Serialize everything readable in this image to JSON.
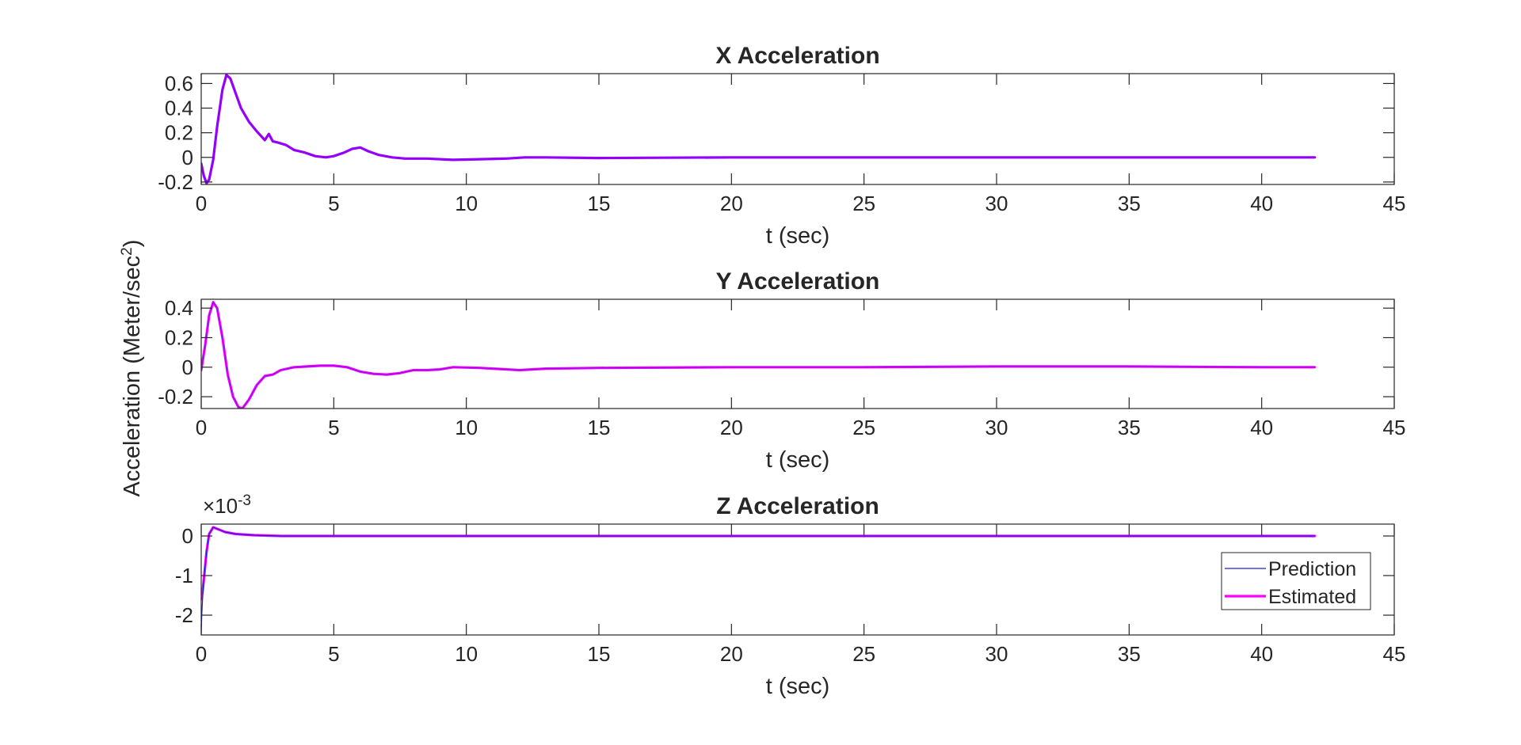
{
  "figure": {
    "ylabel_main": "Acceleration (Meter/sec",
    "ylabel_exp": "2",
    "ylabel_close": ")"
  },
  "colors": {
    "prediction": "#1f1fd6",
    "estimated": "#ff00ff",
    "overlap": "#9400ff",
    "axes": "#262626",
    "grid": "#262626"
  },
  "legend": {
    "placement": "bottom-right of Z Acceleration panel",
    "entries": [
      "Prediction",
      "Estimated"
    ]
  },
  "chart_data": [
    {
      "type": "line",
      "title": "X Acceleration",
      "xlabel": "t (sec)",
      "ylabel": "",
      "xlim": [
        0,
        45
      ],
      "ylim": [
        -0.22,
        0.68
      ],
      "xticks": [
        0,
        5,
        10,
        15,
        20,
        25,
        30,
        35,
        40,
        45
      ],
      "xtick_labels": [
        "0",
        "5",
        "10",
        "15",
        "20",
        "25",
        "30",
        "35",
        "40",
        "45"
      ],
      "yticks": [
        -0.2,
        0,
        0.2,
        0.4,
        0.6
      ],
      "ytick_labels": [
        "-0.2",
        "0",
        "0.2",
        "0.4",
        "0.6"
      ],
      "grid": false,
      "series": [
        {
          "name": "Prediction",
          "x": [
            0,
            0.1,
            0.2,
            0.3,
            0.45,
            0.6,
            0.8,
            0.95,
            1.1,
            1.3,
            1.5,
            1.8,
            2.1,
            2.4,
            2.55,
            2.7,
            2.9,
            3.2,
            3.5,
            3.9,
            4.3,
            4.7,
            5.0,
            5.4,
            5.7,
            6.0,
            6.3,
            6.7,
            7.2,
            7.7,
            8.5,
            9.5,
            10.5,
            11.5,
            12.2,
            13,
            15,
            20,
            25,
            30,
            35,
            40,
            42
          ],
          "y": [
            -0.05,
            -0.15,
            -0.21,
            -0.18,
            -0.02,
            0.25,
            0.55,
            0.67,
            0.64,
            0.52,
            0.4,
            0.29,
            0.21,
            0.14,
            0.19,
            0.13,
            0.12,
            0.1,
            0.06,
            0.04,
            0.01,
            0.0,
            0.01,
            0.04,
            0.07,
            0.08,
            0.05,
            0.02,
            0.0,
            -0.01,
            -0.01,
            -0.02,
            -0.015,
            -0.01,
            0.0,
            0.0,
            -0.005,
            0.0,
            0.0,
            0.0,
            0.0,
            0.0,
            0.0
          ]
        },
        {
          "name": "Estimated",
          "x": [
            0,
            0.1,
            0.2,
            0.3,
            0.45,
            0.6,
            0.8,
            0.95,
            1.1,
            1.3,
            1.5,
            1.8,
            2.1,
            2.4,
            2.55,
            2.7,
            2.9,
            3.2,
            3.5,
            3.9,
            4.3,
            4.7,
            5.0,
            5.4,
            5.7,
            6.0,
            6.3,
            6.7,
            7.2,
            7.7,
            8.5,
            9.5,
            10.5,
            11.5,
            12.2,
            13,
            15,
            20,
            25,
            30,
            35,
            40,
            42
          ],
          "y": [
            -0.05,
            -0.15,
            -0.21,
            -0.18,
            -0.02,
            0.25,
            0.55,
            0.67,
            0.64,
            0.52,
            0.4,
            0.29,
            0.21,
            0.14,
            0.19,
            0.13,
            0.12,
            0.1,
            0.06,
            0.04,
            0.01,
            0.0,
            0.01,
            0.04,
            0.07,
            0.08,
            0.05,
            0.02,
            0.0,
            -0.01,
            -0.01,
            -0.02,
            -0.015,
            -0.01,
            0.0,
            0.0,
            -0.005,
            0.0,
            0.0,
            0.0,
            0.0,
            0.0,
            0.0
          ]
        }
      ]
    },
    {
      "type": "line",
      "title": "Y Acceleration",
      "xlabel": "t (sec)",
      "ylabel": "",
      "xlim": [
        0,
        45
      ],
      "ylim": [
        -0.28,
        0.46
      ],
      "xticks": [
        0,
        5,
        10,
        15,
        20,
        25,
        30,
        35,
        40,
        45
      ],
      "xtick_labels": [
        "0",
        "5",
        "10",
        "15",
        "20",
        "25",
        "30",
        "35",
        "40",
        "45"
      ],
      "yticks": [
        -0.2,
        0,
        0.2,
        0.4
      ],
      "ytick_labels": [
        "-0.2",
        "0",
        "0.2",
        "0.4"
      ],
      "grid": false,
      "series": [
        {
          "name": "Prediction",
          "x": [
            0,
            0.15,
            0.3,
            0.45,
            0.6,
            0.8,
            1.0,
            1.2,
            1.4,
            1.55,
            1.8,
            2.1,
            2.4,
            2.7,
            3.0,
            3.5,
            4.0,
            4.5,
            5.0,
            5.5,
            6.0,
            6.5,
            7.0,
            7.5,
            8.0,
            8.5,
            9.0,
            9.5,
            10.5,
            11.0,
            12.0,
            13.0,
            15,
            20,
            25,
            30,
            35,
            40,
            42
          ],
          "y": [
            -0.02,
            0.15,
            0.35,
            0.44,
            0.4,
            0.2,
            -0.05,
            -0.2,
            -0.27,
            -0.28,
            -0.22,
            -0.12,
            -0.06,
            -0.05,
            -0.02,
            0.0,
            0.005,
            0.01,
            0.01,
            0.0,
            -0.03,
            -0.045,
            -0.05,
            -0.04,
            -0.02,
            -0.02,
            -0.015,
            0.0,
            -0.005,
            -0.01,
            -0.02,
            -0.01,
            -0.005,
            0.0,
            0.0,
            0.005,
            0.005,
            0.0,
            0.0
          ]
        },
        {
          "name": "Estimated",
          "x": [
            0,
            0.15,
            0.3,
            0.45,
            0.6,
            0.8,
            1.0,
            1.2,
            1.4,
            1.55,
            1.8,
            2.1,
            2.4,
            2.7,
            3.0,
            3.5,
            4.0,
            4.5,
            5.0,
            5.5,
            6.0,
            6.5,
            7.0,
            7.5,
            8.0,
            8.5,
            9.0,
            9.5,
            10.5,
            11.0,
            12.0,
            13.0,
            15,
            20,
            25,
            30,
            35,
            40,
            42
          ],
          "y": [
            -0.02,
            0.15,
            0.35,
            0.44,
            0.4,
            0.2,
            -0.05,
            -0.2,
            -0.27,
            -0.28,
            -0.22,
            -0.12,
            -0.06,
            -0.05,
            -0.02,
            0.0,
            0.005,
            0.01,
            0.01,
            0.0,
            -0.03,
            -0.045,
            -0.05,
            -0.04,
            -0.02,
            -0.02,
            -0.015,
            0.0,
            -0.005,
            -0.01,
            -0.02,
            -0.01,
            -0.005,
            0.0,
            0.0,
            0.005,
            0.005,
            0.0,
            0.0
          ]
        }
      ]
    },
    {
      "type": "line",
      "title": "Z Acceleration",
      "xlabel": "t (sec)",
      "ylabel": "",
      "y_multiplier_base": "×10",
      "y_multiplier_exp": "-3",
      "xlim": [
        0,
        45
      ],
      "ylim": [
        -2.5,
        0.3
      ],
      "xticks": [
        0,
        5,
        10,
        15,
        20,
        25,
        30,
        35,
        40,
        45
      ],
      "xtick_labels": [
        "0",
        "5",
        "10",
        "15",
        "20",
        "25",
        "30",
        "35",
        "40",
        "45"
      ],
      "yticks": [
        -2,
        -1,
        0
      ],
      "ytick_labels": [
        "-2",
        "-1",
        "0"
      ],
      "grid": false,
      "series": [
        {
          "name": "Prediction",
          "x": [
            0,
            0.02,
            0.05,
            0.1,
            0.2,
            0.3,
            0.45,
            0.6,
            0.9,
            1.3,
            2.0,
            3.0,
            5.0,
            10,
            20,
            30,
            40,
            42
          ],
          "y": [
            -2.5,
            -2.0,
            -1.6,
            -1.1,
            -0.4,
            0.05,
            0.22,
            0.18,
            0.1,
            0.05,
            0.02,
            0.0,
            0.0,
            0.0,
            0.0,
            0.0,
            0.0,
            0.0
          ]
        },
        {
          "name": "Estimated",
          "x": [
            0,
            0.05,
            0.1,
            0.2,
            0.3,
            0.45,
            0.6,
            0.9,
            1.3,
            2.0,
            3.0,
            5.0,
            10,
            20,
            30,
            40,
            42
          ],
          "y": [
            -1.6,
            -1.4,
            -1.1,
            -0.4,
            0.05,
            0.22,
            0.18,
            0.1,
            0.05,
            0.02,
            0.0,
            0.0,
            0.0,
            0.0,
            0.0,
            0.0,
            0.0
          ]
        }
      ]
    }
  ]
}
